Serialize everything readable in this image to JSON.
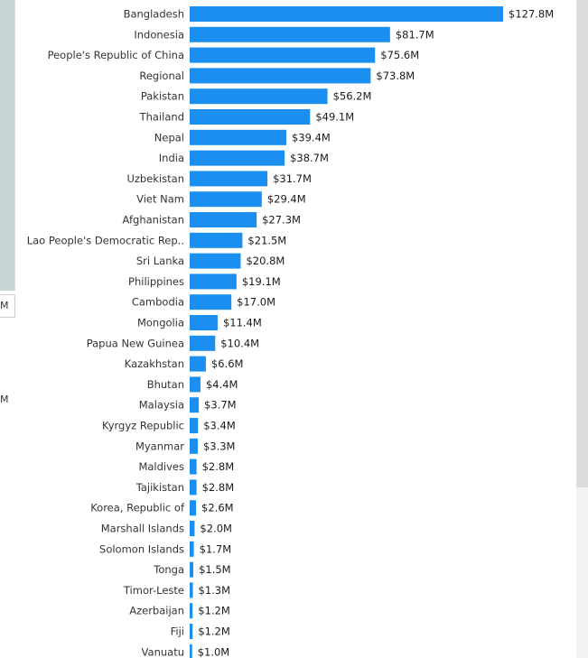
{
  "page": {
    "clipped_left_labels": [
      "M",
      "M"
    ]
  },
  "colors": {
    "bar": "#1a8fef",
    "left_panel": "#c9d4d4",
    "scrollbar_thumb": "#dcdcdc"
  },
  "chart_data": {
    "type": "bar",
    "orientation": "horizontal",
    "categories": [
      "Bangladesh",
      "Indonesia",
      "People's Republic of China",
      "Regional",
      "Pakistan",
      "Thailand",
      "Nepal",
      "India",
      "Uzbekistan",
      "Viet Nam",
      "Afghanistan",
      "Lao People's Democratic Rep..",
      "Sri Lanka",
      "Philippines",
      "Cambodia",
      "Mongolia",
      "Papua New Guinea",
      "Kazakhstan",
      "Bhutan",
      "Malaysia",
      "Kyrgyz Republic",
      "Myanmar",
      "Maldives",
      "Tajikistan",
      "Korea, Republic of",
      "Marshall Islands",
      "Solomon Islands",
      "Tonga",
      "Timor-Leste",
      "Azerbaijan",
      "Fiji",
      "Vanuatu"
    ],
    "values": [
      127.8,
      81.7,
      75.6,
      73.8,
      56.2,
      49.1,
      39.4,
      38.7,
      31.7,
      29.4,
      27.3,
      21.5,
      20.8,
      19.1,
      17.0,
      11.4,
      10.4,
      6.6,
      4.4,
      3.7,
      3.4,
      3.3,
      2.8,
      2.8,
      2.6,
      2.0,
      1.7,
      1.5,
      1.3,
      1.2,
      1.2,
      1.0
    ],
    "value_labels": [
      "$127.8M",
      "$81.7M",
      "$75.6M",
      "$73.8M",
      "$56.2M",
      "$49.1M",
      "$39.4M",
      "$38.7M",
      "$31.7M",
      "$29.4M",
      "$27.3M",
      "$21.5M",
      "$20.8M",
      "$19.1M",
      "$17.0M",
      "$11.4M",
      "$10.4M",
      "$6.6M",
      "$4.4M",
      "$3.7M",
      "$3.4M",
      "$3.3M",
      "$2.8M",
      "$2.8M",
      "$2.6M",
      "$2.0M",
      "$1.7M",
      "$1.5M",
      "$1.3M",
      "$1.2M",
      "$1.2M",
      "$1.0M"
    ],
    "title": "",
    "xlabel": "",
    "ylabel": "",
    "xlim": [
      0,
      127.8
    ],
    "grid": false,
    "legend": "none"
  }
}
